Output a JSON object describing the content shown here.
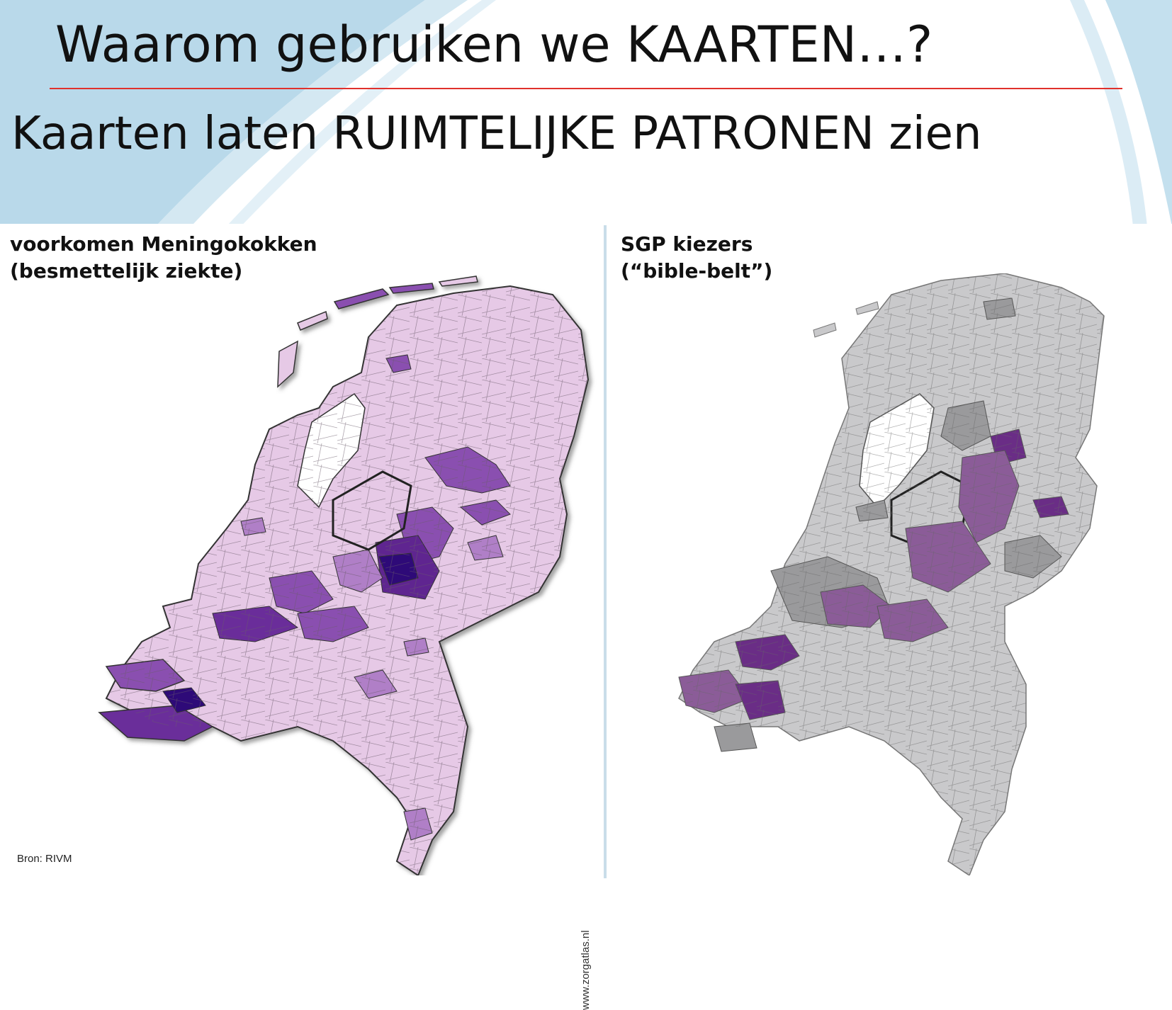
{
  "slide": {
    "title": "Waarom gebruiken we KAARTEN…?",
    "subtitle": "Kaarten laten RUIMTELIJKE PATRONEN zien"
  },
  "maps": [
    {
      "caption_line1": "voorkomen Meningokokken",
      "caption_line2": "(besmettelijk ziekte)",
      "source": "Bron: RIVM",
      "credit": "www.zorgatlas.nl",
      "base_color": "#e6c9e6",
      "highlight_colors": [
        "#b07fc7",
        "#8a4fb0",
        "#5f2590",
        "#2e0a78"
      ]
    },
    {
      "caption_line1": "SGP kiezers",
      "caption_line2": "(“bible-belt”)",
      "base_color": "#c9c9cb",
      "highlight_colors": [
        "#9a9a9c",
        "#8b5c98",
        "#6a2d86"
      ]
    }
  ],
  "colors": {
    "title_rule": "#e0312c",
    "background_wave": "#b9d9ea"
  }
}
